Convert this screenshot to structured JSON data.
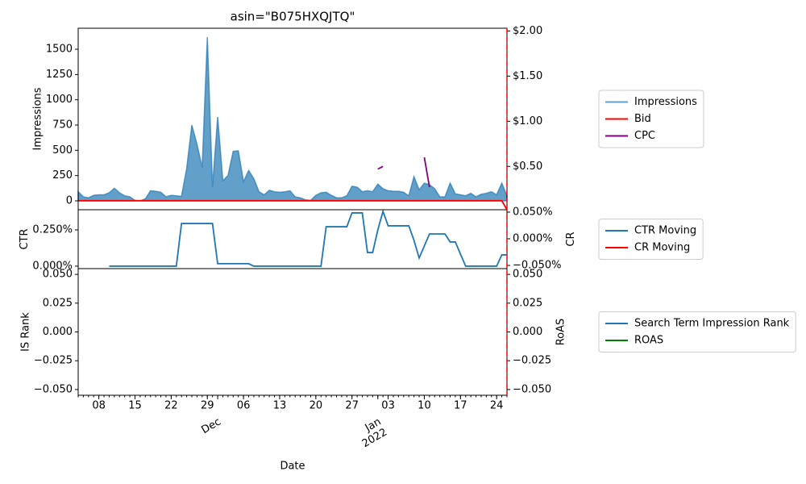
{
  "chart_data": {
    "type": "line",
    "title": "asin=\"B075HXQJTQ\"",
    "xlabel": "Date",
    "x": [
      "Nov 04",
      "Nov 05",
      "Nov 06",
      "Nov 07",
      "Nov 08",
      "Nov 09",
      "Nov 10",
      "Nov 11",
      "Nov 12",
      "Nov 13",
      "Nov 14",
      "Nov 15",
      "Nov 16",
      "Nov 17",
      "Nov 18",
      "Nov 19",
      "Nov 20",
      "Nov 21",
      "Nov 22",
      "Nov 23",
      "Nov 24",
      "Nov 25",
      "Nov 26",
      "Nov 27",
      "Nov 28",
      "Nov 29",
      "Nov 30",
      "Dec 01",
      "Dec 02",
      "Dec 03",
      "Dec 04",
      "Dec 05",
      "Dec 06",
      "Dec 07",
      "Dec 08",
      "Dec 09",
      "Dec 10",
      "Dec 11",
      "Dec 12",
      "Dec 13",
      "Dec 14",
      "Dec 15",
      "Dec 16",
      "Dec 17",
      "Dec 18",
      "Dec 19",
      "Dec 20",
      "Dec 21",
      "Dec 22",
      "Dec 23",
      "Dec 24",
      "Dec 25",
      "Dec 26",
      "Dec 27",
      "Dec 28",
      "Dec 29",
      "Dec 30",
      "Dec 31",
      "Jan 01",
      "Jan 02",
      "Jan 03",
      "Jan 04",
      "Jan 05",
      "Jan 06",
      "Jan 07",
      "Jan 08",
      "Jan 09",
      "Jan 10",
      "Jan 11",
      "Jan 12",
      "Jan 13",
      "Jan 14",
      "Jan 15",
      "Jan 16",
      "Jan 17",
      "Jan 18",
      "Jan 19",
      "Jan 20",
      "Jan 21",
      "Jan 22",
      "Jan 23",
      "Jan 24",
      "Jan 25",
      "Jan 26"
    ],
    "xticks": [
      {
        "value": "Nov 08",
        "label": "08"
      },
      {
        "value": "Nov 15",
        "label": "15"
      },
      {
        "value": "Nov 22",
        "label": "22"
      },
      {
        "value": "Nov 29",
        "label": "29"
      },
      {
        "value": "Dec 06",
        "label": "06"
      },
      {
        "value": "Dec 13",
        "label": "13"
      },
      {
        "value": "Dec 20",
        "label": "20"
      },
      {
        "value": "Dec 27",
        "label": "27"
      },
      {
        "value": "Jan 03",
        "label": "03"
      },
      {
        "value": "Jan 10",
        "label": "10"
      },
      {
        "value": "Jan 17",
        "label": "17"
      },
      {
        "value": "Jan 24",
        "label": "24"
      }
    ],
    "month_ticks": [
      {
        "value": "Dec 01",
        "label": [
          "Dec"
        ]
      },
      {
        "value": "Jan 01",
        "label": [
          "Jan",
          "2022"
        ]
      }
    ],
    "vline": {
      "x": "Jan 26",
      "color": "red"
    },
    "panels": [
      {
        "ylabel": "Impressions",
        "ylim": [
          -88,
          1708
        ],
        "yticks": [
          0,
          250,
          500,
          750,
          1000,
          1250,
          1500
        ],
        "ytick_color": "blue",
        "y2lim": [
          0.02,
          2.03
        ],
        "y2ticks": [
          {
            "value": 0.5,
            "label": "$0.50"
          },
          {
            "value": 1.0,
            "label": "$1.00"
          },
          {
            "value": 1.5,
            "label": "$1.50"
          },
          {
            "value": 2.0,
            "label": "$2.00"
          }
        ],
        "y2tick_color": "black",
        "series": [
          {
            "name": "Impressions",
            "color": "#1f77b4",
            "kind": "area",
            "values": [
              90,
              40,
              30,
              55,
              60,
              60,
              80,
              125,
              80,
              50,
              40,
              5,
              0,
              20,
              100,
              95,
              85,
              40,
              55,
              50,
              45,
              320,
              750,
              560,
              330,
              1620,
              140,
              830,
              200,
              250,
              490,
              495,
              190,
              300,
              220,
              90,
              60,
              105,
              90,
              85,
              90,
              100,
              40,
              30,
              10,
              5,
              55,
              80,
              85,
              55,
              30,
              30,
              50,
              145,
              135,
              90,
              100,
              90,
              165,
              120,
              100,
              95,
              95,
              85,
              50,
              240,
              110,
              175,
              160,
              120,
              40,
              40,
              175,
              70,
              60,
              50,
              75,
              40,
              65,
              75,
              90,
              60,
              175,
              50
            ]
          },
          {
            "name": "Bid",
            "color": "red",
            "axis": "y2",
            "values": [
              0.12,
              0.12,
              0.12,
              0.12,
              0.12,
              0.12,
              0.12,
              0.12,
              0.12,
              0.12,
              0.12,
              0.12,
              0.12,
              0.12,
              0.12,
              0.12,
              0.12,
              0.12,
              0.12,
              0.12,
              0.12,
              0.12,
              0.12,
              0.12,
              0.12,
              0.12,
              0.12,
              0.12,
              0.12,
              0.12,
              0.12,
              0.12,
              0.12,
              0.12,
              0.12,
              0.12,
              0.12,
              0.12,
              0.12,
              0.12,
              0.12,
              0.12,
              0.12,
              0.12,
              0.12,
              0.12,
              0.12,
              0.12,
              0.12,
              0.12,
              0.12,
              0.12,
              0.12,
              0.12,
              0.12,
              0.12,
              0.12,
              0.12,
              0.12,
              0.12,
              0.12,
              0.12,
              0.12,
              0.12,
              0.12,
              0.12,
              0.12,
              0.12,
              0.12,
              0.12,
              0.12,
              0.12,
              0.12,
              0.12,
              0.12,
              0.12,
              0.12,
              0.12,
              0.12,
              0.12,
              0.12,
              0.12,
              0.12,
              0.02
            ]
          },
          {
            "name": "CPC",
            "color": "purple",
            "axis": "y2",
            "values": [
              null,
              null,
              null,
              null,
              null,
              null,
              null,
              null,
              null,
              null,
              null,
              null,
              null,
              null,
              null,
              null,
              null,
              null,
              null,
              null,
              null,
              null,
              null,
              null,
              null,
              null,
              null,
              null,
              null,
              null,
              null,
              null,
              null,
              null,
              null,
              null,
              null,
              null,
              null,
              null,
              null,
              null,
              null,
              null,
              null,
              null,
              null,
              null,
              null,
              null,
              null,
              null,
              null,
              null,
              null,
              null,
              null,
              null,
              0.47,
              0.5,
              null,
              null,
              null,
              null,
              null,
              null,
              null,
              0.6,
              0.27,
              null,
              null,
              null,
              null,
              null,
              null,
              null,
              null,
              null,
              null,
              null,
              null,
              null,
              null,
              null
            ]
          }
        ]
      },
      {
        "ylabel": "CTR",
        "y2label": "CR",
        "ylim": [
          -0.017,
          0.389
        ],
        "yticks": [
          {
            "value": 0,
            "label": "0.000%"
          },
          {
            "value": 0.25,
            "label": "0.250%"
          }
        ],
        "ytick_color": "blue",
        "y2lim": [
          -0.056,
          0.0545
        ],
        "y2ticks": [
          {
            "value": -0.05,
            "label": "−0.050%"
          },
          {
            "value": 0,
            "label": "0.000%"
          },
          {
            "value": 0.05,
            "label": "0.050%"
          }
        ],
        "y2tick_color": "red",
        "series": [
          {
            "name": "CTR Moving",
            "color": "#1f77b4",
            "values": [
              null,
              null,
              null,
              null,
              null,
              null,
              0,
              0,
              0,
              0,
              0,
              0,
              0,
              0,
              0,
              0,
              0,
              0,
              0,
              0,
              0.294,
              0.294,
              0.294,
              0.294,
              0.294,
              0.294,
              0.294,
              0.017,
              0.017,
              0.017,
              0.017,
              0.017,
              0.017,
              0.017,
              0,
              0,
              0,
              0,
              0,
              0,
              0,
              0,
              0,
              0,
              0,
              0,
              0,
              0,
              0.272,
              0.272,
              0.272,
              0.272,
              0.272,
              0.367,
              0.367,
              0.367,
              0.094,
              0.094,
              0.25,
              0.378,
              0.278,
              0.278,
              0.278,
              0.278,
              0.278,
              0.178,
              0.056,
              0.139,
              0.222,
              0.222,
              0.222,
              0.222,
              0.167,
              0.167,
              0.083,
              0,
              0,
              0,
              0,
              0,
              0,
              0,
              0.078,
              0.078
            ]
          },
          {
            "name": "CR Moving",
            "color": "red",
            "axis": "y2",
            "values": [
              null,
              null,
              null,
              null,
              null,
              null,
              null,
              null,
              null,
              null,
              null,
              null,
              null,
              null,
              null,
              null,
              null,
              null,
              null,
              null,
              null,
              null,
              null,
              null,
              null,
              null,
              null,
              null,
              null,
              null,
              null,
              null,
              null,
              null,
              null,
              null,
              null,
              null,
              null,
              null,
              null,
              null,
              null,
              null,
              null,
              null,
              null,
              null,
              null,
              null,
              null,
              null,
              null,
              null,
              null,
              null,
              null,
              null,
              null,
              null,
              null,
              null,
              null,
              null,
              null,
              null,
              null,
              null,
              null,
              null,
              null,
              null,
              null,
              null,
              null,
              null,
              null,
              null,
              null,
              null,
              null,
              null,
              null,
              null
            ]
          }
        ]
      },
      {
        "ylabel": "IS Rank",
        "y2label": "RoAS",
        "ylim": [
          -0.055,
          0.055
        ],
        "yticks": [
          {
            "value": -0.05,
            "label": "−0.050"
          },
          {
            "value": -0.025,
            "label": "−0.025"
          },
          {
            "value": 0,
            "label": "0.000"
          },
          {
            "value": 0.025,
            "label": "0.025"
          },
          {
            "value": 0.05,
            "label": "0.050"
          }
        ],
        "ytick_color": "blue",
        "y2lim": [
          -0.055,
          0.055
        ],
        "y2ticks": [
          {
            "value": -0.05,
            "label": "−0.050"
          },
          {
            "value": -0.025,
            "label": "−0.025"
          },
          {
            "value": 0,
            "label": "0.000"
          },
          {
            "value": 0.025,
            "label": "0.025"
          },
          {
            "value": 0.05,
            "label": "0.050"
          }
        ],
        "y2tick_color": "green",
        "series": [
          {
            "name": "Search Term Impression Rank",
            "color": "#1f77b4",
            "values": [
              null,
              null,
              null,
              null,
              null,
              null,
              null,
              null,
              null,
              null,
              null,
              null,
              null,
              null,
              null,
              null,
              null,
              null,
              null,
              null,
              null,
              null,
              null,
              null,
              null,
              null,
              null,
              null,
              null,
              null,
              null,
              null,
              null,
              null,
              null,
              null,
              null,
              null,
              null,
              null,
              null,
              null,
              null,
              null,
              null,
              null,
              null,
              null,
              null,
              null,
              null,
              null,
              null,
              null,
              null,
              null,
              null,
              null,
              null,
              null,
              null,
              null,
              null,
              null,
              null,
              null,
              null,
              null,
              null,
              null,
              null,
              null,
              null,
              null,
              null,
              null,
              null,
              null,
              null,
              null,
              null,
              null,
              null,
              null
            ]
          },
          {
            "name": "ROAS",
            "color": "green",
            "axis": "y2",
            "values": [
              null,
              null,
              null,
              null,
              null,
              null,
              null,
              null,
              null,
              null,
              null,
              null,
              null,
              null,
              null,
              null,
              null,
              null,
              null,
              null,
              null,
              null,
              null,
              null,
              null,
              null,
              null,
              null,
              null,
              null,
              null,
              null,
              null,
              null,
              null,
              null,
              null,
              null,
              null,
              null,
              null,
              null,
              null,
              null,
              null,
              null,
              null,
              null,
              null,
              null,
              null,
              null,
              null,
              null,
              null,
              null,
              null,
              null,
              null,
              null,
              null,
              null,
              null,
              null,
              null,
              null,
              null,
              null,
              null,
              null,
              null,
              null,
              null,
              null,
              null,
              null,
              null,
              null,
              null,
              null,
              null,
              null,
              null,
              null
            ]
          }
        ]
      }
    ]
  }
}
